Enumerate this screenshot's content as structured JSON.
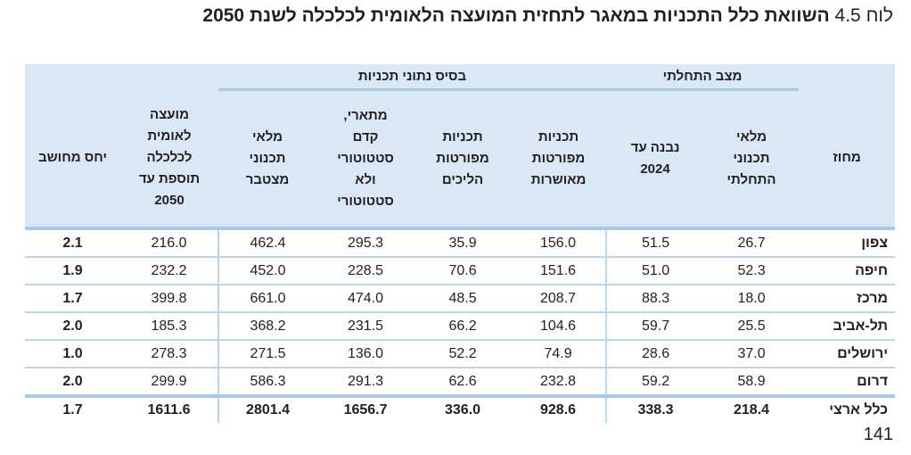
{
  "title": {
    "label": "לוח 4.5",
    "text": "השוואת כלל התכניות במאגר לתחזית המועצה הלאומית לכלכלה לשנת 2050"
  },
  "table": {
    "group_headers": {
      "initial_state": "מצב התחלתי",
      "plan_database": "בסיס נתוני תכניות"
    },
    "columns": [
      "מחוז",
      "מלאי תכנוני התחלתי",
      "נבנה עד 2024",
      "תכניות מפורטות מאושרות",
      "תכניות מפורטות הליכים",
      "מתארי, קדם סטטוטורי ולא סטטוטורי",
      "מלאי תכנוני מצטבר",
      "מועצה לאומית לכלכלה תוספת עד 2050",
      "יחס מחושב"
    ],
    "rows": [
      [
        "צפון",
        "26.7",
        "51.5",
        "156.0",
        "35.9",
        "295.3",
        "462.4",
        "216.0",
        "2.1"
      ],
      [
        "חיפה",
        "52.3",
        "51.0",
        "151.6",
        "70.6",
        "228.5",
        "452.0",
        "232.2",
        "1.9"
      ],
      [
        "מרכז",
        "18.0",
        "88.3",
        "208.7",
        "48.5",
        "474.0",
        "661.0",
        "399.8",
        "1.7"
      ],
      [
        "תל-אביב",
        "25.5",
        "59.7",
        "104.6",
        "66.2",
        "231.5",
        "368.2",
        "185.3",
        "2.0"
      ],
      [
        "ירושלים",
        "37.0",
        "28.6",
        "74.9",
        "52.2",
        "136.0",
        "271.5",
        "278.3",
        "1.0"
      ],
      [
        "דרום",
        "58.9",
        "59.2",
        "232.8",
        "62.6",
        "291.3",
        "586.3",
        "299.9",
        "2.0"
      ]
    ],
    "total": [
      "כלל ארצי",
      "218.4",
      "338.3",
      "928.6",
      "336.0",
      "1656.7",
      "2801.4",
      "1611.6",
      "1.7"
    ]
  },
  "page_number": "141"
}
